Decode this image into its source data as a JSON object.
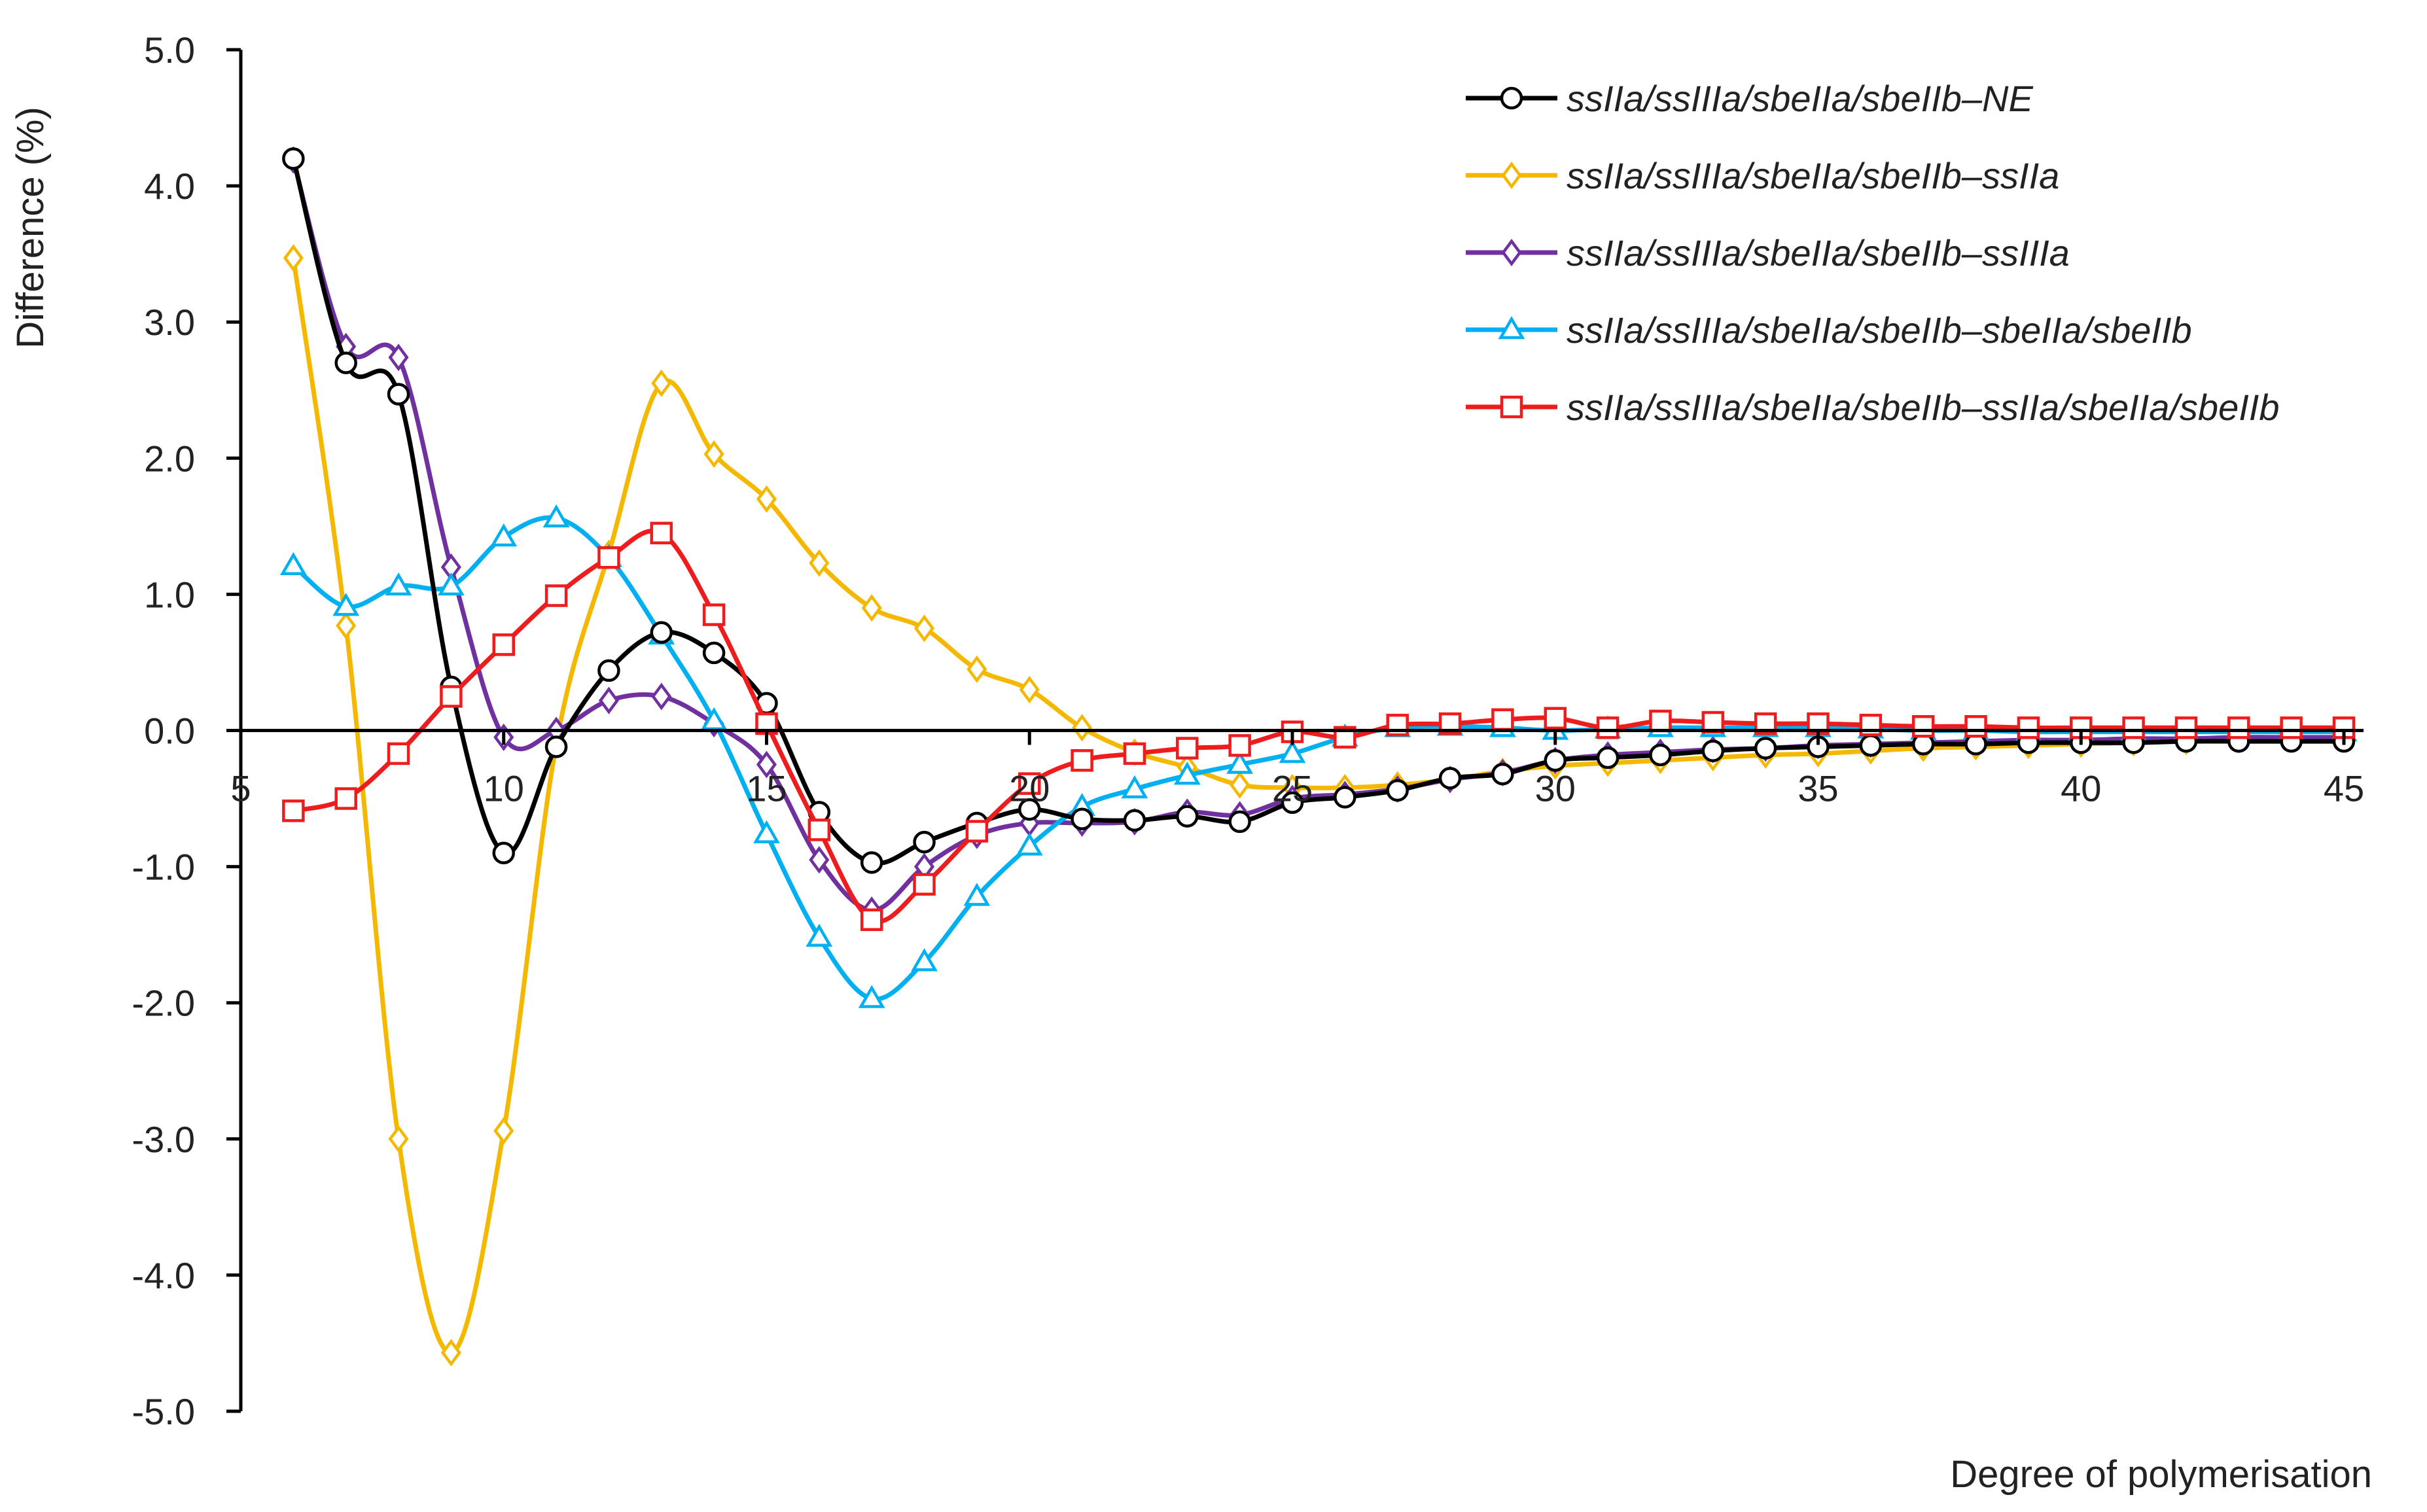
{
  "chart_data": {
    "type": "line",
    "title": "",
    "xlabel": "Degree of polymerisation",
    "ylabel": "Difference (%)",
    "xlim": [
      5,
      45
    ],
    "ylim": [
      -5,
      5
    ],
    "x_ticks": [
      5,
      10,
      15,
      20,
      25,
      30,
      35,
      40,
      45
    ],
    "y_ticks": [
      5,
      4,
      3,
      2,
      1,
      0,
      -1,
      -2,
      -3,
      -4,
      -5
    ],
    "x_tick_labels": [
      "5",
      "10",
      "15",
      "20",
      "25",
      "30",
      "35",
      "40",
      "45"
    ],
    "y_tick_labels": [
      "5.0",
      "4.0",
      "3.0",
      "2.0",
      "1.0",
      "0.0",
      "-1.0",
      "-2.0",
      "-3.0",
      "-4.0",
      "-5.0"
    ],
    "grid": false,
    "legend_position": "top-right",
    "x": [
      6,
      7,
      8,
      9,
      10,
      11,
      12,
      13,
      14,
      15,
      16,
      17,
      18,
      19,
      20,
      21,
      22,
      23,
      24,
      25,
      26,
      27,
      28,
      29,
      30,
      31,
      32,
      33,
      34,
      35,
      36,
      37,
      38,
      39,
      40,
      41,
      42,
      43,
      44,
      45
    ],
    "series": [
      {
        "name": "ssIIa/ssIIIa/sbeIIa/sbeIIb–NE",
        "color": "#000000",
        "marker": "circle",
        "values": [
          4.2,
          2.7,
          2.47,
          0.32,
          -0.9,
          -0.12,
          0.44,
          0.72,
          0.57,
          0.2,
          -0.6,
          -0.97,
          -0.82,
          -0.68,
          -0.58,
          -0.65,
          -0.66,
          -0.63,
          -0.67,
          -0.53,
          -0.49,
          -0.44,
          -0.35,
          -0.32,
          -0.22,
          -0.2,
          -0.18,
          -0.15,
          -0.13,
          -0.12,
          -0.11,
          -0.1,
          -0.1,
          -0.09,
          -0.09,
          -0.09,
          -0.08,
          -0.08,
          -0.08,
          -0.08
        ]
      },
      {
        "name": "ssIIa/ssIIIa/sbeIIa/sbeIIb–ssIIa",
        "color": "#f5b800",
        "marker": "diamond",
        "values": [
          3.47,
          0.77,
          -3.0,
          -4.57,
          -2.94,
          -0.1,
          1.3,
          2.55,
          2.03,
          1.7,
          1.23,
          0.9,
          0.75,
          0.45,
          0.3,
          0.02,
          -0.16,
          -0.27,
          -0.4,
          -0.42,
          -0.42,
          -0.4,
          -0.36,
          -0.3,
          -0.26,
          -0.24,
          -0.22,
          -0.2,
          -0.18,
          -0.17,
          -0.15,
          -0.13,
          -0.12,
          -0.11,
          -0.1,
          -0.09,
          -0.08,
          -0.07,
          -0.06,
          -0.05
        ]
      },
      {
        "name": "ssIIa/ssIIIa/sbeIIa/sbeIIb–ssIIIa",
        "color": "#7030a0",
        "marker": "diamond",
        "values": [
          4.19,
          2.82,
          2.74,
          1.2,
          -0.05,
          0.0,
          0.22,
          0.25,
          0.05,
          -0.25,
          -0.95,
          -1.32,
          -1.0,
          -0.77,
          -0.68,
          -0.68,
          -0.67,
          -0.6,
          -0.62,
          -0.5,
          -0.47,
          -0.43,
          -0.36,
          -0.31,
          -0.22,
          -0.18,
          -0.16,
          -0.14,
          -0.13,
          -0.11,
          -0.1,
          -0.09,
          -0.08,
          -0.07,
          -0.07,
          -0.06,
          -0.06,
          -0.05,
          -0.05,
          -0.05
        ]
      },
      {
        "name": "ssIIa/ssIIIa/sbeIIa/sbeIIb–sbeIIa/sbeIIb",
        "color": "#00b0f0",
        "marker": "triangle",
        "values": [
          1.21,
          0.91,
          1.06,
          1.06,
          1.42,
          1.56,
          1.27,
          0.7,
          0.07,
          -0.76,
          -1.52,
          -1.97,
          -1.7,
          -1.22,
          -0.85,
          -0.56,
          -0.43,
          -0.33,
          -0.25,
          -0.17,
          -0.05,
          0.02,
          0.03,
          0.02,
          0.0,
          0.01,
          0.02,
          0.02,
          0.02,
          0.02,
          0.01,
          0.0,
          0.0,
          -0.01,
          -0.01,
          -0.01,
          -0.01,
          -0.01,
          -0.01,
          -0.01
        ]
      },
      {
        "name": "ssIIa/ssIIIa/sbeIIa/sbeIIb–ssIIa/sbeIIa/sbeIIb",
        "color": "#ee1c1c",
        "marker": "square",
        "values": [
          -0.59,
          -0.5,
          -0.17,
          0.25,
          0.63,
          0.99,
          1.27,
          1.45,
          0.85,
          0.05,
          -0.73,
          -1.39,
          -1.13,
          -0.74,
          -0.39,
          -0.22,
          -0.17,
          -0.13,
          -0.11,
          -0.01,
          -0.05,
          0.04,
          0.05,
          0.08,
          0.09,
          0.02,
          0.07,
          0.06,
          0.05,
          0.05,
          0.04,
          0.03,
          0.03,
          0.02,
          0.02,
          0.02,
          0.02,
          0.02,
          0.02,
          0.02
        ]
      }
    ]
  }
}
